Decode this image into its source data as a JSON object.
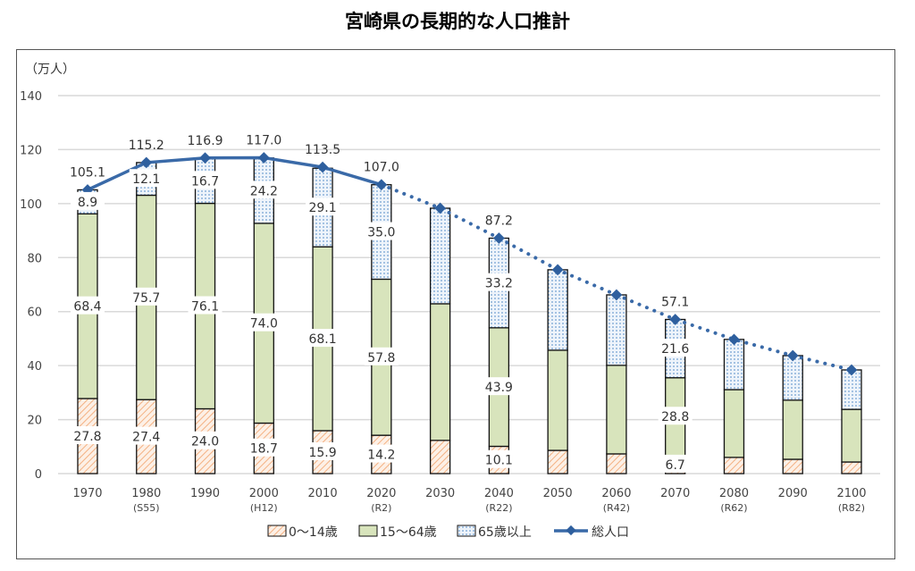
{
  "chart_data": {
    "type": "bar",
    "stacked": true,
    "title": "宮崎県の長期的な人口推計",
    "ylabel": "（万人）",
    "ylim": [
      0,
      140
    ],
    "yticks": [
      0,
      20,
      40,
      60,
      80,
      100,
      120,
      140
    ],
    "grid": true,
    "legend_position": "bottom",
    "categories": [
      "1970",
      "1980",
      "1990",
      "2000",
      "2010",
      "2020",
      "2030",
      "2040",
      "2050",
      "2060",
      "2070",
      "2080",
      "2090",
      "2100"
    ],
    "era_labels": [
      "",
      "(S55)",
      "",
      "(H12)",
      "",
      "(R2)",
      "",
      "(R22)",
      "",
      "(R42)",
      "",
      "(R62)",
      "",
      "(R82)"
    ],
    "series": [
      {
        "name": "0～14歳",
        "color": "#f4b183",
        "pattern": "hatch",
        "values": [
          27.8,
          27.4,
          24.0,
          18.7,
          15.9,
          14.2,
          12.3,
          10.1,
          8.6,
          7.3,
          6.7,
          6.0,
          5.3,
          4.3
        ]
      },
      {
        "name": "15～64歳",
        "color": "#d8e4bc",
        "pattern": "solid",
        "values": [
          68.4,
          75.7,
          76.1,
          74.0,
          68.1,
          57.8,
          50.6,
          43.9,
          37.1,
          32.8,
          28.8,
          25.1,
          21.9,
          19.5
        ]
      },
      {
        "name": "65歳以上",
        "color": "#9dc3e6",
        "pattern": "dots",
        "values": [
          8.9,
          12.1,
          16.7,
          24.2,
          29.1,
          35.0,
          35.4,
          33.2,
          29.8,
          26.1,
          21.6,
          18.6,
          16.5,
          14.6
        ]
      }
    ],
    "line": {
      "name": "総人口",
      "color": "#3a6aa8",
      "values": [
        105.1,
        115.2,
        116.9,
        117.0,
        113.5,
        107.0,
        98.3,
        87.2,
        75.5,
        66.2,
        57.1,
        49.7,
        43.7,
        38.4
      ],
      "projection_from": "2020"
    },
    "labeled_categories": [
      "1970",
      "1980",
      "1990",
      "2000",
      "2010",
      "2020",
      "2040",
      "2070"
    ],
    "total_labels": {
      "1970": "105.1",
      "1980": "115.2",
      "1990": "116.9",
      "2000": "117.0",
      "2010": "113.5",
      "2020": "107.0",
      "2040": "87.2",
      "2070": "57.1"
    }
  }
}
